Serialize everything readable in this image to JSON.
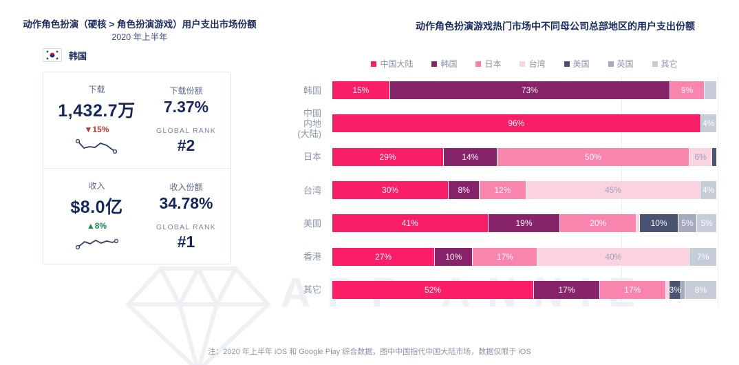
{
  "left_panel": {
    "title": "动作角色扮演（硬核 > 角色扮演游戏）用户支出市场份额",
    "subtitle": "2020 年上半年",
    "country_label": "韩国",
    "flag_icon": "south-korea-flag",
    "card": {
      "downloads": {
        "label": "下载",
        "value": "1,432.7万",
        "change": "▼15%",
        "change_direction": "down",
        "share_label": "下载份额",
        "share_value": "7.37%",
        "rank_label": "GLOBAL RANK",
        "rank_value": "#2"
      },
      "revenue": {
        "label": "收入",
        "value": "$8.0亿",
        "change": "▲8%",
        "change_direction": "up",
        "share_label": "收入份额",
        "share_value": "34.78%",
        "rank_label": "GLOBAL RANK",
        "rank_value": "#1"
      }
    }
  },
  "right_panel": {
    "title": "动作角色扮演游戏热门市场中不同母公司总部地区的用户支出份额"
  },
  "chart_data": {
    "type": "bar",
    "orientation": "horizontal",
    "stacked": true,
    "unit": "percent",
    "xlim": [
      0,
      100
    ],
    "grid": true,
    "legend_position": "top",
    "legend": [
      "中国大陆",
      "韩国",
      "日本",
      "台湾",
      "美国",
      "英国",
      "其它"
    ],
    "colors": {
      "中国大陆": "#FA1E69",
      "韩国": "#862369",
      "日本": "#F985AE",
      "台湾": "#FBD2DF",
      "美国": "#4A5472",
      "英国": "#A4ABBE",
      "其它": "#C6CCD8"
    },
    "categories": [
      "韩国",
      "中国内地(大陆)",
      "日本",
      "台湾",
      "美国",
      "香港",
      "其它"
    ],
    "rows": [
      {
        "category": "韩国",
        "label_lines": "韩国",
        "segments": [
          {
            "region": "中国大陆",
            "value": 15,
            "label": "15%"
          },
          {
            "region": "韩国",
            "value": 73,
            "label": "73%"
          },
          {
            "region": "日本",
            "value": 9,
            "label": "9%"
          },
          {
            "region": "其它",
            "value": 3,
            "label": ""
          }
        ]
      },
      {
        "category": "中国内地(大陆)",
        "label_lines": "中国\n内地\n(大陆)",
        "segments": [
          {
            "region": "中国大陆",
            "value": 96,
            "label": "96%"
          },
          {
            "region": "其它",
            "value": 4,
            "label": "4%"
          }
        ]
      },
      {
        "category": "日本",
        "label_lines": "日本",
        "segments": [
          {
            "region": "中国大陆",
            "value": 29,
            "label": "29%"
          },
          {
            "region": "韩国",
            "value": 14,
            "label": "14%"
          },
          {
            "region": "日本",
            "value": 50,
            "label": "50%"
          },
          {
            "region": "台湾",
            "value": 6,
            "label": "6%"
          },
          {
            "region": "美国",
            "value": 1,
            "label": ""
          }
        ]
      },
      {
        "category": "台湾",
        "label_lines": "台湾",
        "segments": [
          {
            "region": "中国大陆",
            "value": 30,
            "label": "30%"
          },
          {
            "region": "韩国",
            "value": 8,
            "label": "8%"
          },
          {
            "region": "日本",
            "value": 12,
            "label": "12%"
          },
          {
            "region": "台湾",
            "value": 45,
            "label": "45%"
          },
          {
            "region": "其它",
            "value": 4,
            "label": "4%"
          }
        ]
      },
      {
        "category": "美国",
        "label_lines": "美国",
        "segments": [
          {
            "region": "中国大陆",
            "value": 41,
            "label": "41%"
          },
          {
            "region": "韩国",
            "value": 19,
            "label": "19%"
          },
          {
            "region": "日本",
            "value": 20,
            "label": "20%"
          },
          {
            "region": "台湾",
            "value": 1,
            "label": ""
          },
          {
            "region": "美国",
            "value": 10,
            "label": "10%"
          },
          {
            "region": "英国",
            "value": 5,
            "label": "5%"
          },
          {
            "region": "其它",
            "value": 5,
            "label": "5%"
          }
        ]
      },
      {
        "category": "香港",
        "label_lines": "香港",
        "segments": [
          {
            "region": "中国大陆",
            "value": 27,
            "label": "27%"
          },
          {
            "region": "韩国",
            "value": 10,
            "label": "10%"
          },
          {
            "region": "日本",
            "value": 17,
            "label": "17%"
          },
          {
            "region": "台湾",
            "value": 40,
            "label": "40%"
          },
          {
            "region": "其它",
            "value": 7,
            "label": "7%"
          }
        ]
      },
      {
        "category": "其它",
        "label_lines": "其它",
        "segments": [
          {
            "region": "中国大陆",
            "value": 52,
            "label": "52%"
          },
          {
            "region": "韩国",
            "value": 17,
            "label": "17%"
          },
          {
            "region": "日本",
            "value": 17,
            "label": "17%"
          },
          {
            "region": "台湾",
            "value": 1,
            "label": ""
          },
          {
            "region": "美国",
            "value": 3,
            "label": "3%"
          },
          {
            "region": "英国",
            "value": 1,
            "label": ""
          },
          {
            "region": "其它",
            "value": 8,
            "label": "8%"
          }
        ]
      }
    ]
  },
  "footnote": "注：2020 年上半年 iOS 和 Google Play 综合数据，图中中国指代中国大陆市场，数据仅限于 iOS",
  "watermark_text": "APP ANNIE"
}
